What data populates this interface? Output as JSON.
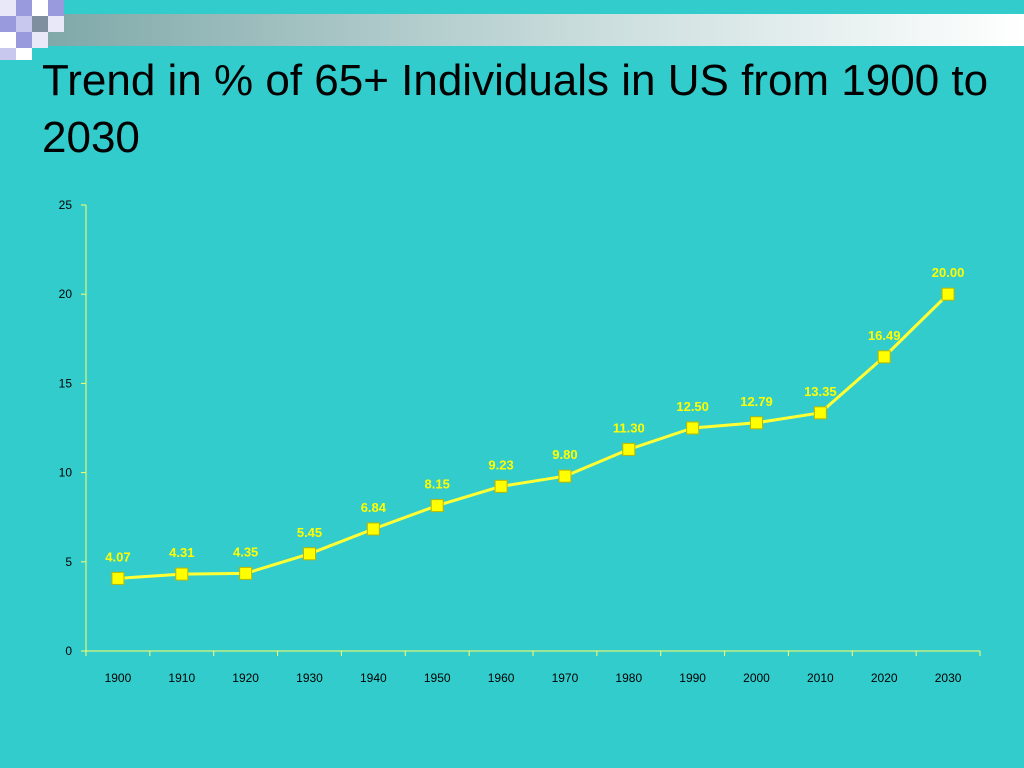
{
  "slide": {
    "title": "Trend in % of 65+ Individuals in US from 1900 to 2030"
  },
  "colors": {
    "background": "#33cccc",
    "axis": "#ffff66",
    "series": "#ffff33",
    "marker": "#ffff00",
    "marker_border": "#b8b800"
  },
  "chart_data": {
    "type": "line",
    "title": "",
    "xlabel": "",
    "ylabel": "",
    "categories": [
      "1900",
      "1910",
      "1920",
      "1930",
      "1940",
      "1950",
      "1960",
      "1970",
      "1980",
      "1990",
      "2000",
      "2010",
      "2020",
      "2030"
    ],
    "series": [
      {
        "values": [
          4.07,
          4.31,
          4.35,
          5.45,
          6.84,
          8.15,
          9.23,
          9.8,
          11.3,
          12.5,
          12.79,
          13.35,
          16.49,
          20.0
        ],
        "labels": [
          "4.07",
          "4.31",
          "4.35",
          "5.45",
          "6.84",
          "8.15",
          "9.23",
          "9.80",
          "11.30",
          "12.50",
          "12.79",
          "13.35",
          "16.49",
          "20.00"
        ],
        "marker": "square"
      }
    ],
    "ylim": [
      0,
      25
    ],
    "yticks": [
      "0",
      "5",
      "10",
      "15",
      "20",
      "25"
    ],
    "grid": false,
    "legend": "none"
  }
}
